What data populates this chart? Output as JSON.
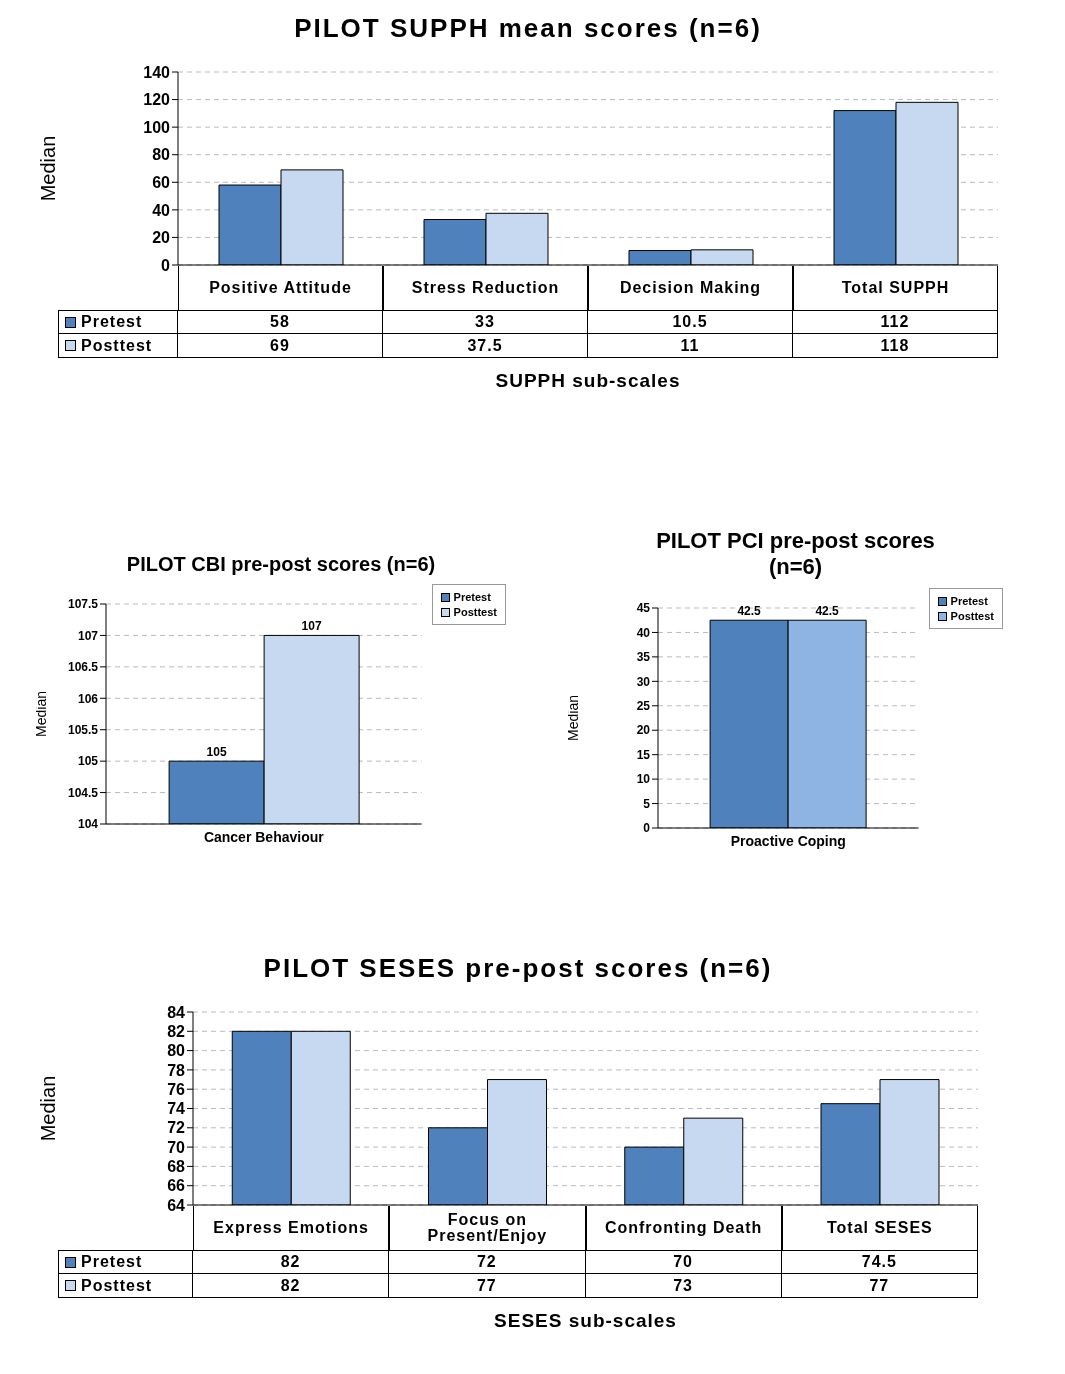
{
  "chart_data": [
    {
      "type": "bar",
      "title": "PILOT SUPPH mean scores (n=6)",
      "xlabel": "SUPPH sub-scales",
      "ylabel": "Median",
      "categories": [
        "Positive Attitude",
        "Stress Reduction",
        "Decision Making",
        "Total SUPPH"
      ],
      "series": [
        {
          "name": "Pretest",
          "color": "#4f81bd",
          "values": [
            58,
            33,
            10.5,
            112
          ]
        },
        {
          "name": "Posttest",
          "color": "#c6d9f0",
          "values": [
            69,
            37.5,
            11,
            118
          ]
        }
      ],
      "ylim": [
        0,
        140
      ],
      "yticks": [
        0,
        20,
        40,
        60,
        80,
        100,
        120,
        140
      ],
      "grid": "y",
      "legend": "bottom",
      "data_labels": true
    },
    {
      "type": "bar",
      "title": "PILOT CBI pre-post scores (n=6)",
      "ylabel": "Median",
      "categories": [
        "Cancer Behaviour"
      ],
      "series": [
        {
          "name": "Pretest",
          "color": "#4f81bd",
          "values": [
            105
          ]
        },
        {
          "name": "Posttest",
          "color": "#c6d9f0",
          "values": [
            107
          ]
        }
      ],
      "ylim": [
        104,
        107.5
      ],
      "yticks": [
        104,
        104.5,
        105,
        105.5,
        106,
        106.5,
        107,
        107.5
      ],
      "grid": "y",
      "legend": "top right",
      "data_labels": true
    },
    {
      "type": "bar",
      "title": "PILOT PCI pre-post scores (n=6)",
      "ylabel": "Median",
      "categories": [
        "Proactive Coping"
      ],
      "series": [
        {
          "name": "Pretest",
          "color": "#4f81bd",
          "values": [
            42.5
          ]
        },
        {
          "name": "Posttest",
          "color": "#8eb4e3",
          "values": [
            42.5
          ]
        }
      ],
      "ylim": [
        0,
        45
      ],
      "yticks": [
        0,
        5,
        10,
        15,
        20,
        25,
        30,
        35,
        40,
        45
      ],
      "grid": "y",
      "legend": "top right",
      "data_labels": true
    },
    {
      "type": "bar",
      "title": "PILOT SESES pre-post scores (n=6)",
      "xlabel": "SESES sub-scales",
      "ylabel": "Median",
      "categories": [
        "Express Emotions",
        "Focus on Present/Enjoy",
        "Confronting Death",
        "Total SESES"
      ],
      "series": [
        {
          "name": "Pretest",
          "color": "#4f81bd",
          "values": [
            82,
            72,
            70,
            74.5
          ]
        },
        {
          "name": "Posttest",
          "color": "#c6d9f0",
          "values": [
            82,
            77,
            73,
            77
          ]
        }
      ],
      "ylim": [
        64,
        84
      ],
      "yticks": [
        64,
        66,
        68,
        70,
        72,
        74,
        76,
        78,
        80,
        82,
        84
      ],
      "grid": "y",
      "legend": "bottom",
      "data_labels": true
    }
  ]
}
